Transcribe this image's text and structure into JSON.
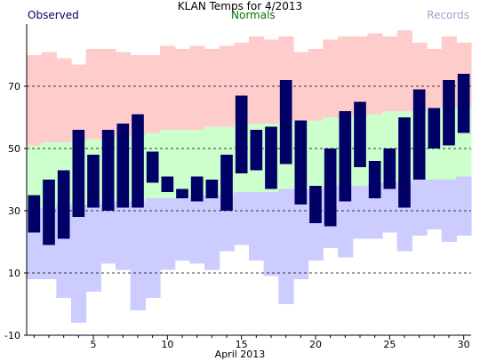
{
  "header": {
    "title": "KLAN Temps for 4/2013",
    "legend_observed": "Observed",
    "legend_normals": "Normals",
    "legend_records": "Records"
  },
  "colors": {
    "observed": "#000066",
    "normal": "#ccffcc",
    "record_high": "#ffcccc",
    "record_low": "#ccccff",
    "observed_legend": "#000066",
    "normals_legend": "#007700",
    "records_legend": "#b399cc"
  },
  "chart_data": {
    "type": "bar",
    "title": "KLAN Temps for 4/2013",
    "xlabel": "April 2013",
    "ylabel": "",
    "xlim": [
      0.5,
      30.5
    ],
    "ylim": [
      -10,
      90
    ],
    "x_ticks": [
      5,
      10,
      15,
      20,
      25,
      30
    ],
    "y_ticks": [
      -10,
      10,
      30,
      50,
      70
    ],
    "grid": "dashed horizontal lines at y ticks",
    "days": [
      1,
      2,
      3,
      4,
      5,
      6,
      7,
      8,
      9,
      10,
      11,
      12,
      13,
      14,
      15,
      16,
      17,
      18,
      19,
      20,
      21,
      22,
      23,
      24,
      25,
      26,
      27,
      28,
      29,
      30
    ],
    "series": [
      {
        "name": "Record High",
        "values": [
          80,
          81,
          79,
          77,
          82,
          82,
          81,
          80,
          80,
          83,
          82,
          83,
          82,
          83,
          84,
          86,
          85,
          86,
          81,
          82,
          85,
          86,
          86,
          87,
          86,
          88,
          84,
          82,
          86,
          84
        ]
      },
      {
        "name": "Normal High",
        "values": [
          51,
          52,
          52,
          53,
          53,
          53,
          54,
          54,
          55,
          56,
          56,
          56,
          57,
          57,
          58,
          58,
          58,
          59,
          59,
          59,
          60,
          60,
          61,
          61,
          62,
          62,
          62,
          63,
          63,
          63
        ]
      },
      {
        "name": "Normal Low",
        "values": [
          31,
          31,
          32,
          32,
          32,
          33,
          33,
          33,
          34,
          34,
          34,
          35,
          35,
          35,
          36,
          36,
          36,
          37,
          37,
          37,
          38,
          38,
          38,
          39,
          39,
          39,
          40,
          40,
          40,
          41
        ]
      },
      {
        "name": "Record Low",
        "values": [
          8,
          8,
          2,
          -6,
          4,
          13,
          11,
          -2,
          2,
          11,
          14,
          13,
          11,
          17,
          19,
          14,
          9,
          0,
          8,
          14,
          18,
          15,
          21,
          21,
          23,
          17,
          22,
          24,
          20,
          22
        ]
      },
      {
        "name": "Observed High",
        "values": [
          35,
          40,
          43,
          56,
          48,
          56,
          58,
          61,
          49,
          41,
          37,
          41,
          40,
          48,
          67,
          56,
          57,
          72,
          59,
          38,
          50,
          62,
          65,
          46,
          50,
          60,
          69,
          63,
          72,
          74
        ]
      },
      {
        "name": "Observed Low",
        "values": [
          23,
          19,
          21,
          28,
          31,
          30,
          31,
          31,
          39,
          36,
          34,
          33,
          34,
          30,
          42,
          43,
          37,
          45,
          32,
          26,
          25,
          33,
          44,
          34,
          37,
          31,
          40,
          50,
          51,
          55
        ]
      }
    ]
  }
}
